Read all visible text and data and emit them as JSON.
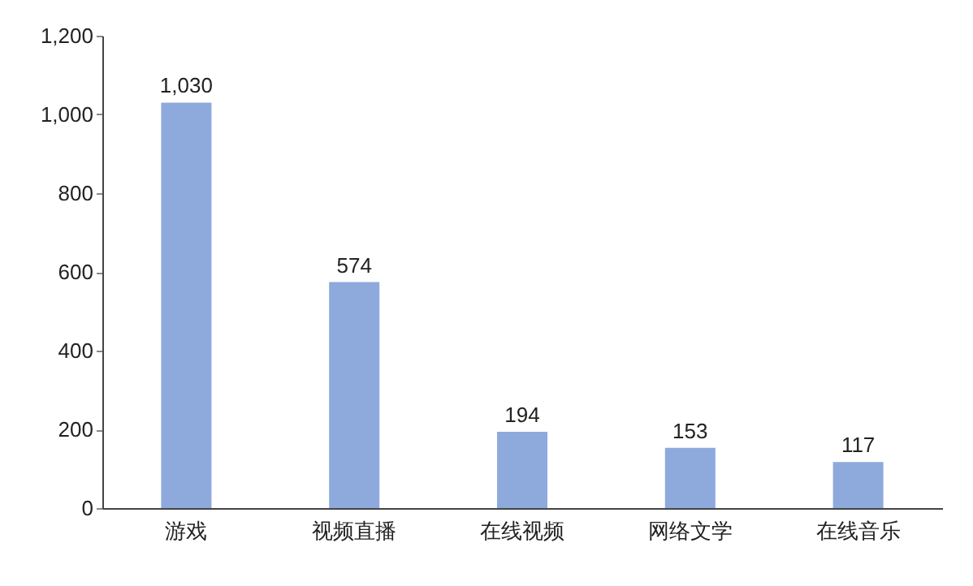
{
  "chart_data": {
    "type": "bar",
    "categories": [
      "游戏",
      "视频直播",
      "在线视频",
      "网络文学",
      "在线音乐"
    ],
    "values": [
      1030,
      574,
      194,
      153,
      117
    ],
    "value_labels": [
      "1,030",
      "574",
      "194",
      "153",
      "117"
    ],
    "color": "#8eaadc",
    "ylim": [
      0,
      1200
    ],
    "yticks": [
      0,
      200,
      400,
      600,
      800,
      {
        "value": 1000,
        "label": "1,000"
      },
      {
        "value": 1200,
        "label": "1,200"
      }
    ],
    "grid": false
  }
}
